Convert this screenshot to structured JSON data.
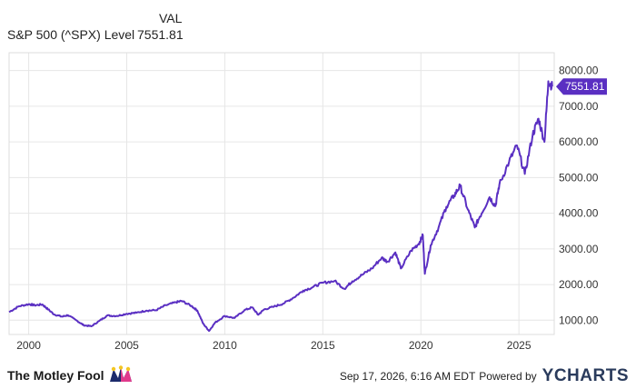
{
  "legend": {
    "column_header": "VAL",
    "series_name": "S&P 500 (^SPX) Level",
    "series_value": "7551.81"
  },
  "footer": {
    "brand": "The Motley Fool",
    "timestamp": "Sep 17, 2026, 6:16 AM EDT",
    "powered_by": "Powered by",
    "provider": "YCHARTS"
  },
  "colors": {
    "line": "#5a2fc2",
    "grid": "#e6e6e6",
    "plot_border": "#dddddd"
  },
  "chart_data": {
    "type": "line",
    "title": "",
    "xlabel": "",
    "ylabel": "",
    "x_ticks": [
      "2000",
      "2005",
      "2010",
      "2015",
      "2020",
      "2025"
    ],
    "y_ticks": [
      "1000.00",
      "2000.00",
      "3000.00",
      "4000.00",
      "5000.00",
      "6000.00",
      "7000.00",
      "8000.00"
    ],
    "xlim": [
      1999.0,
      2026.8
    ],
    "ylim": [
      600,
      8500
    ],
    "grid": true,
    "last_value_label": "7551.81",
    "series": [
      {
        "name": "S&P 500 (^SPX) Level",
        "x": [
          1999.0,
          1999.5,
          2000.0,
          2000.3,
          2000.7,
          2001.0,
          2001.3,
          2001.7,
          2002.0,
          2002.5,
          2002.8,
          2003.2,
          2003.6,
          2004.0,
          2004.5,
          2005.0,
          2005.5,
          2006.0,
          2006.5,
          2007.0,
          2007.5,
          2007.8,
          2008.3,
          2008.6,
          2008.9,
          2009.2,
          2009.5,
          2010.0,
          2010.5,
          2011.0,
          2011.4,
          2011.7,
          2012.0,
          2012.5,
          2013.0,
          2013.5,
          2014.0,
          2014.5,
          2015.0,
          2015.6,
          2016.1,
          2016.5,
          2017.0,
          2017.5,
          2018.0,
          2018.3,
          2018.7,
          2018.98,
          2019.5,
          2019.9,
          2020.1,
          2020.2,
          2020.5,
          2020.9,
          2021.3,
          2021.7,
          2022.0,
          2022.4,
          2022.75,
          2023.0,
          2023.5,
          2023.8,
          2024.0,
          2024.5,
          2024.9,
          2025.3,
          2025.7,
          2026.0,
          2026.3,
          2026.5,
          2026.7
        ],
        "values": [
          1230,
          1390,
          1450,
          1420,
          1440,
          1300,
          1160,
          1100,
          1140,
          970,
          860,
          830,
          980,
          1130,
          1120,
          1180,
          1210,
          1270,
          1280,
          1420,
          1500,
          1540,
          1400,
          1270,
          900,
          700,
          930,
          1120,
          1060,
          1280,
          1360,
          1150,
          1300,
          1380,
          1470,
          1630,
          1830,
          1930,
          2050,
          2100,
          1880,
          2090,
          2270,
          2450,
          2750,
          2640,
          2900,
          2450,
          2950,
          3150,
          3380,
          2300,
          3100,
          3600,
          4180,
          4500,
          4770,
          4100,
          3600,
          3900,
          4450,
          4200,
          4800,
          5450,
          5900,
          5100,
          6200,
          6650,
          6000,
          7700,
          7551.81
        ]
      }
    ]
  }
}
